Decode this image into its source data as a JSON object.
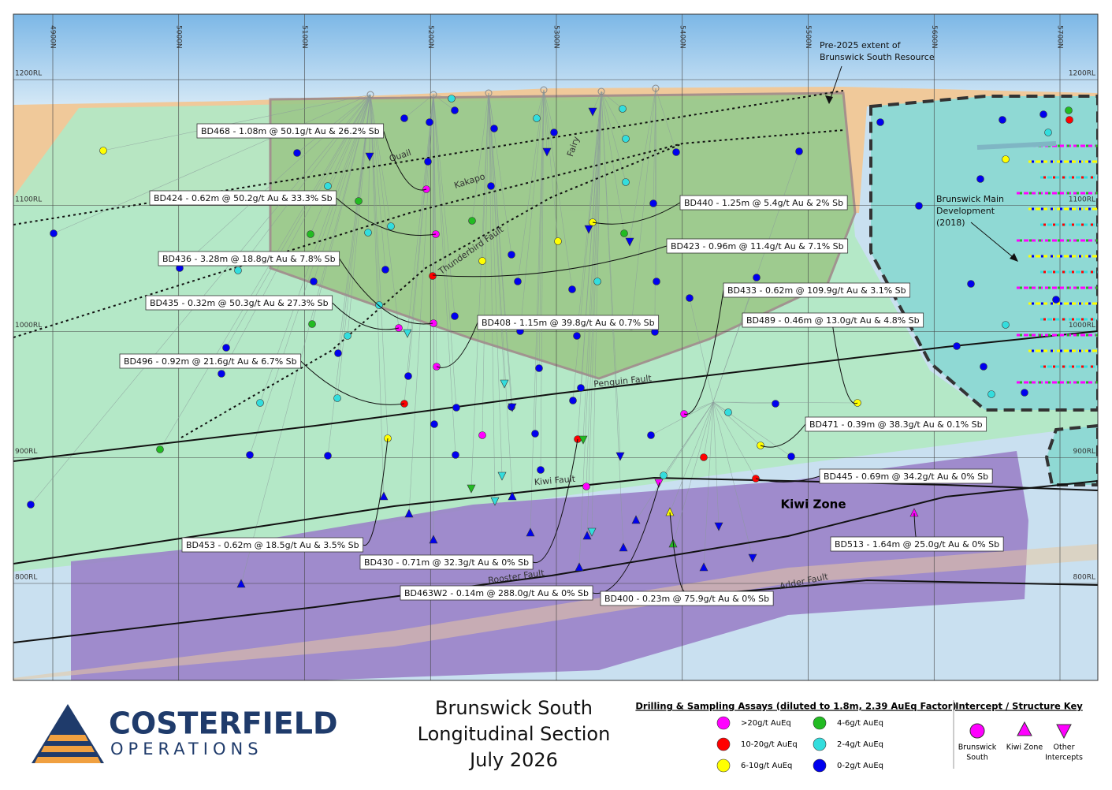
{
  "grid": {
    "northings": [
      "4900N",
      "5000N",
      "5100N",
      "5200N",
      "5300N",
      "5400N",
      "5500N",
      "5600N",
      "5700N"
    ],
    "levels": [
      "1200RL",
      "1100RL",
      "1000RL",
      "900RL",
      "800RL"
    ]
  },
  "annotations": {
    "resource_extent": [
      "Pre-2025 extent of",
      "Brunswick South Resource"
    ],
    "main_development": [
      "Brunswick Main",
      "Development",
      "(2018)"
    ],
    "faults": [
      "Quail",
      "Kakapo",
      "Fairy",
      "Thunderbird Fault",
      "Penguin Fault",
      "Kiwi Fault",
      "Rooster Fault",
      "Adder Fault"
    ],
    "zone": "Kiwi Zone"
  },
  "intercepts": [
    "BD468 - 1.08m @ 50.1g/t Au & 26.2% Sb",
    "BD424 - 0.62m @ 50.2g/t Au & 33.3% Sb",
    "BD440 - 1.25m @ 5.4g/t Au & 2% Sb",
    "BD436 - 3.28m @ 18.8g/t Au & 7.8% Sb",
    "BD423 - 0.96m @ 11.4g/t Au & 7.1% Sb",
    "BD433 - 0.62m @ 109.9g/t Au & 3.1% Sb",
    "BD435 - 0.32m @ 50.3g/t Au & 27.3% Sb",
    "BD408 - 1.15m @ 39.8g/t Au & 0.7% Sb",
    "BD489 - 0.46m @ 13.0g/t Au & 4.8% Sb",
    "BD496 - 0.92m @ 21.6g/t Au & 6.7% Sb",
    "BD471 - 0.39m @ 38.3g/t Au & 0.1% Sb",
    "BD445 - 0.69m @ 34.2g/t Au & 0% Sb",
    "BD453 - 0.62m @ 18.5g/t Au & 3.5% Sb",
    "BD430 - 0.71m @ 32.3g/t Au & 0% Sb",
    "BD463W2 - 0.14m @ 288.0g/t Au & 0% Sb",
    "BD400 - 0.23m @ 75.9g/t Au & 0% Sb",
    "BD513 - 1.64m @ 25.0g/t Au & 0% Sb"
  ],
  "logo": {
    "name": "COSTERFIELD",
    "subtitle": "OPERATIONS"
  },
  "title": [
    "Brunswick South",
    "Longitudinal Section",
    "July 2026"
  ],
  "assay_legend": {
    "title": "Drilling & Sampling Assays (diluted to 1.8m, 2.39 AuEq Factor)",
    "items": [
      {
        "label": ">20g/t AuEq",
        "color": "#ff00ff"
      },
      {
        "label": "10-20g/t AuEq",
        "color": "#ff0000"
      },
      {
        "label": "6-10g/t AuEq",
        "color": "#ffff00"
      },
      {
        "label": "4-6g/t AuEq",
        "color": "#22bb22"
      },
      {
        "label": "2-4g/t AuEq",
        "color": "#33dddd"
      },
      {
        "label": "0-2g/t AuEq",
        "color": "#0000ee"
      }
    ]
  },
  "key": {
    "title": "Intercept / Structure Key",
    "items": [
      [
        "Brunswick",
        "South"
      ],
      [
        "Kiwi Zone"
      ],
      [
        "Other",
        "Intercepts"
      ]
    ]
  }
}
